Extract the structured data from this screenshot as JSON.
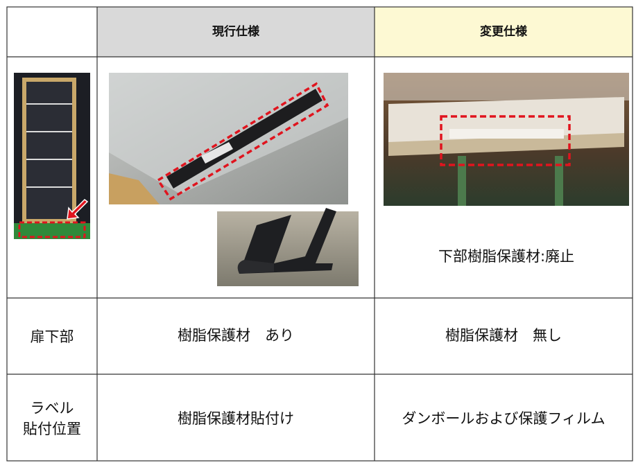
{
  "table": {
    "header": [
      "現行仕様",
      "変更仕様"
    ],
    "image_row_caption": "下部樹脂保護材:廃止",
    "rows": [
      [
        "扉下部",
        "樹脂保護材　あり",
        "樹脂保護材　無し"
      ],
      [
        [
          "ラベル",
          "貼付位置"
        ],
        "樹脂保護材貼付け",
        "ダンボールおよび保護フィルム"
      ]
    ]
  }
}
